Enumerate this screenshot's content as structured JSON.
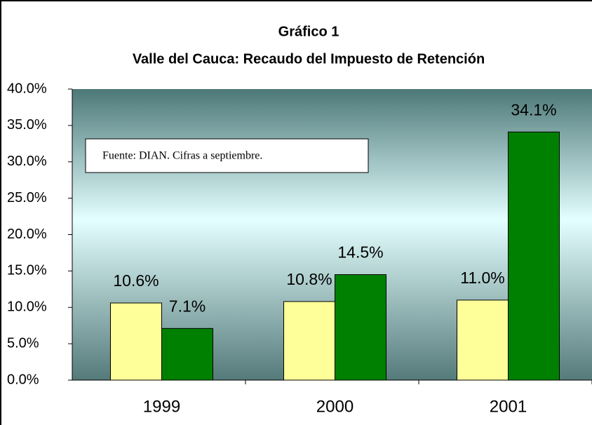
{
  "chart_data": {
    "type": "bar",
    "title": "Gráfico 1",
    "subtitle": "Valle del Cauca:  Recaudo del Impuesto de Retención",
    "annotation": "Fuente: DIAN. Cifras a septiembre.",
    "categories": [
      "1999",
      "2000",
      "2001"
    ],
    "series": [
      {
        "color": "#ffff99",
        "values": [
          10.6,
          10.8,
          11.0
        ],
        "value_labels": [
          "10.6%",
          "10.8%",
          "11.0%"
        ]
      },
      {
        "color": "#008000",
        "values": [
          7.1,
          14.5,
          34.1
        ],
        "value_labels": [
          "7.1%",
          "14.5%",
          "34.1%"
        ]
      }
    ],
    "ylim": [
      0,
      40
    ],
    "yticks": [
      {
        "value": 0,
        "label": "0.0%"
      },
      {
        "value": 5,
        "label": "5.0%"
      },
      {
        "value": 10,
        "label": "10.0%"
      },
      {
        "value": 15,
        "label": "15.0%"
      },
      {
        "value": 20,
        "label": "20.0%"
      },
      {
        "value": 25,
        "label": "25.0%"
      },
      {
        "value": 30,
        "label": "30.0%"
      },
      {
        "value": 35,
        "label": "35.0%"
      },
      {
        "value": 40,
        "label": "40.0%"
      }
    ]
  }
}
